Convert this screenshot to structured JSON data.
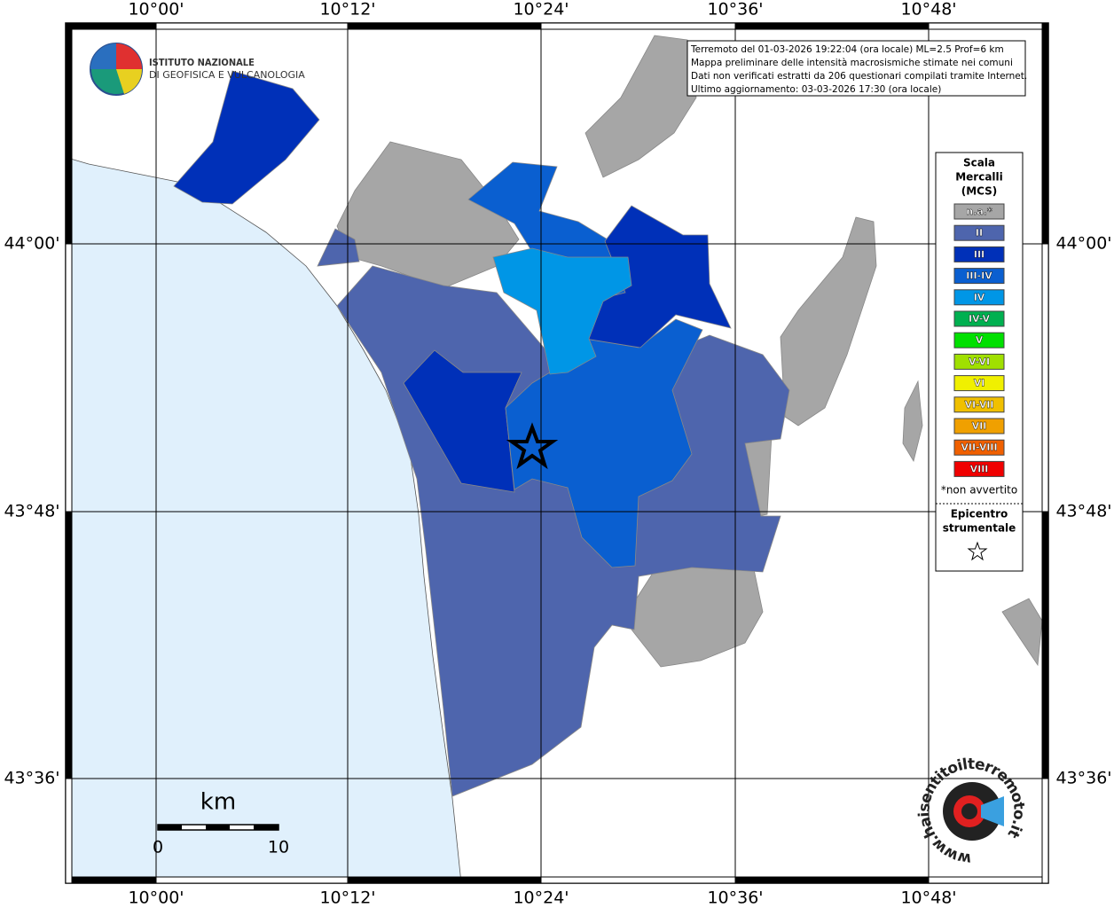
{
  "map": {
    "lon_labels": [
      "10°00'",
      "10°12'",
      "10°24'",
      "10°36'",
      "10°48'"
    ],
    "lat_labels": [
      "44°00'",
      "43°48'",
      "43°36'"
    ],
    "info": [
      "Terremoto del 01-03-2026 19:22:04 (ora locale) ML=2.5 Prof=6 km",
      "Mappa preliminare delle intensità macrosismiche stimate nei comuni",
      "Dati non verificati estratti da 206 questionari compilati tramite Internet.",
      "Ultimo aggiornamento: 03-03-2026 17:30 (ora locale)"
    ],
    "logo": [
      "ISTITUTO NAZIONALE",
      "DI GEOFISICA E VULCANOLOGIA"
    ],
    "legend": {
      "title": [
        "Scala",
        "Mercalli",
        "(MCS)"
      ],
      "items": [
        {
          "label": "n.a.*",
          "color": "#a6a6a6"
        },
        {
          "label": "II",
          "color": "#4e65ad"
        },
        {
          "label": "III",
          "color": "#0030b8"
        },
        {
          "label": "III-IV",
          "color": "#0a5fd0"
        },
        {
          "label": "IV",
          "color": "#0096e6"
        },
        {
          "label": "IV-V",
          "color": "#00b050"
        },
        {
          "label": "V",
          "color": "#00e000"
        },
        {
          "label": "V-VI",
          "color": "#a0e000"
        },
        {
          "label": "VI",
          "color": "#f0f000"
        },
        {
          "label": "VI-VII",
          "color": "#f0c000"
        },
        {
          "label": "VII",
          "color": "#f0a000"
        },
        {
          "label": "VII-VIII",
          "color": "#f06000"
        },
        {
          "label": "VIII",
          "color": "#f00000"
        }
      ],
      "note": "*non avvertito",
      "epicenter": [
        "Epicentro",
        "strumentale"
      ]
    },
    "scale": {
      "unit": "km",
      "labels": [
        "0",
        "10"
      ]
    },
    "site": "www.haisentitoilterremoto.it"
  }
}
